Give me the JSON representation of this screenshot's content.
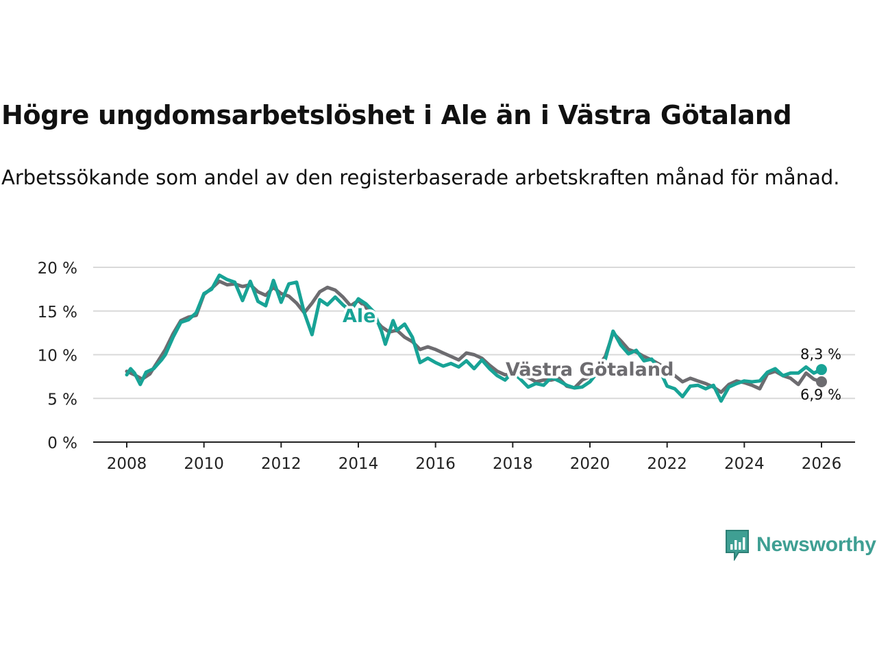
{
  "header": {
    "title": "Högre ungdomsarbetslöshet i Ale än i Västra Götaland",
    "subtitle": "Arbetssökande som andel av den registerbaserade arbetskraften månad för månad."
  },
  "branding": {
    "logo_text": "Newsworthy",
    "logo_color": "#3f9f93"
  },
  "chart_data": {
    "type": "line",
    "title": "Högre ungdomsarbetslöshet i Ale än i Västra Götaland",
    "subtitle": "Arbetssökande som andel av den registerbaserade arbetskraften månad för månad.",
    "xlabel": "",
    "ylabel": "",
    "xlim": [
      2007.5,
      2026.8
    ],
    "ylim": [
      0,
      20
    ],
    "x_ticks": [
      2008,
      2010,
      2012,
      2014,
      2016,
      2018,
      2020,
      2022,
      2024,
      2026
    ],
    "x_tick_labels": [
      "2008",
      "2010",
      "2012",
      "2014",
      "2016",
      "2018",
      "2020",
      "2022",
      "2024",
      "2026"
    ],
    "y_ticks": [
      0,
      5,
      10,
      15,
      20
    ],
    "y_tick_labels": [
      "0 %",
      "5 %",
      "10 %",
      "15 %",
      "20 %"
    ],
    "grid": true,
    "series": [
      {
        "name": "Västra Götaland",
        "color": "#6d6c70",
        "label_text": "Västra Götaland",
        "last_value_label": "6,9 %",
        "points": [
          [
            2008.0,
            8.1
          ],
          [
            2008.2,
            7.7
          ],
          [
            2008.4,
            7.2
          ],
          [
            2008.6,
            7.8
          ],
          [
            2008.8,
            9.2
          ],
          [
            2009.0,
            10.6
          ],
          [
            2009.2,
            12.4
          ],
          [
            2009.4,
            13.9
          ],
          [
            2009.6,
            14.3
          ],
          [
            2009.8,
            14.5
          ],
          [
            2010.0,
            16.9
          ],
          [
            2010.2,
            17.6
          ],
          [
            2010.4,
            18.4
          ],
          [
            2010.6,
            18.0
          ],
          [
            2010.8,
            18.1
          ],
          [
            2011.0,
            17.8
          ],
          [
            2011.2,
            18.0
          ],
          [
            2011.4,
            17.2
          ],
          [
            2011.6,
            16.8
          ],
          [
            2011.8,
            17.7
          ],
          [
            2012.0,
            17.0
          ],
          [
            2012.2,
            16.7
          ],
          [
            2012.4,
            15.9
          ],
          [
            2012.6,
            14.8
          ],
          [
            2012.8,
            15.9
          ],
          [
            2013.0,
            17.2
          ],
          [
            2013.2,
            17.7
          ],
          [
            2013.4,
            17.4
          ],
          [
            2013.6,
            16.6
          ],
          [
            2013.8,
            15.6
          ],
          [
            2014.0,
            16.2
          ],
          [
            2014.2,
            15.4
          ],
          [
            2014.4,
            14.2
          ],
          [
            2014.6,
            13.2
          ],
          [
            2014.8,
            12.6
          ],
          [
            2015.0,
            12.8
          ],
          [
            2015.2,
            12.0
          ],
          [
            2015.4,
            11.5
          ],
          [
            2015.6,
            10.6
          ],
          [
            2015.8,
            10.9
          ],
          [
            2016.0,
            10.6
          ],
          [
            2016.2,
            10.2
          ],
          [
            2016.4,
            9.8
          ],
          [
            2016.6,
            9.4
          ],
          [
            2016.8,
            10.2
          ],
          [
            2017.0,
            10.0
          ],
          [
            2017.2,
            9.6
          ],
          [
            2017.4,
            8.8
          ],
          [
            2017.6,
            8.1
          ],
          [
            2017.8,
            7.7
          ],
          [
            2018.0,
            7.8
          ],
          [
            2018.2,
            7.6
          ],
          [
            2018.4,
            7.4
          ],
          [
            2018.6,
            6.9
          ],
          [
            2018.8,
            7.1
          ],
          [
            2019.0,
            7.1
          ],
          [
            2019.2,
            7.3
          ],
          [
            2019.4,
            6.4
          ],
          [
            2019.6,
            6.2
          ],
          [
            2019.8,
            7.1
          ],
          [
            2020.0,
            7.5
          ],
          [
            2020.2,
            8.6
          ],
          [
            2020.4,
            9.8
          ],
          [
            2020.6,
            12.5
          ],
          [
            2020.8,
            11.6
          ],
          [
            2021.0,
            10.6
          ],
          [
            2021.2,
            10.3
          ],
          [
            2021.4,
            9.8
          ],
          [
            2021.6,
            9.4
          ],
          [
            2021.8,
            8.9
          ],
          [
            2022.0,
            8.3
          ],
          [
            2022.2,
            7.6
          ],
          [
            2022.4,
            6.9
          ],
          [
            2022.6,
            7.3
          ],
          [
            2022.8,
            7.0
          ],
          [
            2023.0,
            6.7
          ],
          [
            2023.2,
            6.3
          ],
          [
            2023.4,
            5.7
          ],
          [
            2023.6,
            6.6
          ],
          [
            2023.8,
            7.0
          ],
          [
            2024.0,
            6.8
          ],
          [
            2024.2,
            6.5
          ],
          [
            2024.4,
            6.1
          ],
          [
            2024.6,
            7.8
          ],
          [
            2024.8,
            8.1
          ],
          [
            2025.0,
            7.6
          ],
          [
            2025.2,
            7.3
          ],
          [
            2025.4,
            6.6
          ],
          [
            2025.6,
            7.9
          ],
          [
            2025.8,
            7.2
          ],
          [
            2026.0,
            6.9
          ]
        ]
      },
      {
        "name": "Ale",
        "color": "#18a396",
        "label_text": "Ale",
        "last_value_label": "8,3 %",
        "points": [
          [
            2008.0,
            7.7
          ],
          [
            2008.1,
            8.4
          ],
          [
            2008.2,
            7.9
          ],
          [
            2008.35,
            6.6
          ],
          [
            2008.5,
            8.0
          ],
          [
            2008.7,
            8.4
          ],
          [
            2008.9,
            9.4
          ],
          [
            2009.0,
            10.0
          ],
          [
            2009.2,
            12.0
          ],
          [
            2009.4,
            13.7
          ],
          [
            2009.6,
            14.0
          ],
          [
            2009.8,
            14.8
          ],
          [
            2010.0,
            17.0
          ],
          [
            2010.2,
            17.5
          ],
          [
            2010.4,
            19.1
          ],
          [
            2010.6,
            18.6
          ],
          [
            2010.8,
            18.3
          ],
          [
            2011.0,
            16.2
          ],
          [
            2011.2,
            18.4
          ],
          [
            2011.4,
            16.1
          ],
          [
            2011.6,
            15.6
          ],
          [
            2011.8,
            18.5
          ],
          [
            2012.0,
            16.0
          ],
          [
            2012.2,
            18.1
          ],
          [
            2012.4,
            18.3
          ],
          [
            2012.6,
            14.8
          ],
          [
            2012.8,
            12.3
          ],
          [
            2013.0,
            16.3
          ],
          [
            2013.2,
            15.7
          ],
          [
            2013.4,
            16.6
          ],
          [
            2013.6,
            15.7
          ],
          [
            2013.8,
            15.0
          ],
          [
            2014.0,
            16.4
          ],
          [
            2014.2,
            15.8
          ],
          [
            2014.4,
            14.9
          ],
          [
            2014.6,
            12.7
          ],
          [
            2014.7,
            11.2
          ],
          [
            2014.9,
            13.9
          ],
          [
            2015.0,
            12.8
          ],
          [
            2015.2,
            13.5
          ],
          [
            2015.4,
            12.0
          ],
          [
            2015.6,
            9.1
          ],
          [
            2015.8,
            9.6
          ],
          [
            2016.0,
            9.1
          ],
          [
            2016.2,
            8.7
          ],
          [
            2016.4,
            9.0
          ],
          [
            2016.6,
            8.6
          ],
          [
            2016.8,
            9.3
          ],
          [
            2017.0,
            8.4
          ],
          [
            2017.2,
            9.4
          ],
          [
            2017.4,
            8.4
          ],
          [
            2017.6,
            7.6
          ],
          [
            2017.8,
            7.1
          ],
          [
            2018.0,
            8.0
          ],
          [
            2018.2,
            7.2
          ],
          [
            2018.4,
            6.3
          ],
          [
            2018.6,
            6.7
          ],
          [
            2018.8,
            6.5
          ],
          [
            2019.0,
            7.4
          ],
          [
            2019.2,
            7.0
          ],
          [
            2019.4,
            6.5
          ],
          [
            2019.6,
            6.2
          ],
          [
            2019.8,
            6.3
          ],
          [
            2020.0,
            6.9
          ],
          [
            2020.2,
            8.0
          ],
          [
            2020.4,
            9.5
          ],
          [
            2020.6,
            12.7
          ],
          [
            2020.8,
            11.1
          ],
          [
            2021.0,
            10.1
          ],
          [
            2021.2,
            10.5
          ],
          [
            2021.4,
            9.3
          ],
          [
            2021.6,
            9.5
          ],
          [
            2021.8,
            8.3
          ],
          [
            2022.0,
            6.4
          ],
          [
            2022.2,
            6.1
          ],
          [
            2022.4,
            5.2
          ],
          [
            2022.6,
            6.4
          ],
          [
            2022.8,
            6.5
          ],
          [
            2023.0,
            6.1
          ],
          [
            2023.2,
            6.5
          ],
          [
            2023.4,
            4.7
          ],
          [
            2023.6,
            6.3
          ],
          [
            2023.8,
            6.7
          ],
          [
            2024.0,
            7.0
          ],
          [
            2024.2,
            6.9
          ],
          [
            2024.4,
            7.0
          ],
          [
            2024.6,
            8.0
          ],
          [
            2024.8,
            8.4
          ],
          [
            2025.0,
            7.6
          ],
          [
            2025.2,
            7.9
          ],
          [
            2025.4,
            7.9
          ],
          [
            2025.6,
            8.6
          ],
          [
            2025.8,
            7.9
          ],
          [
            2026.0,
            8.3
          ]
        ]
      }
    ]
  }
}
